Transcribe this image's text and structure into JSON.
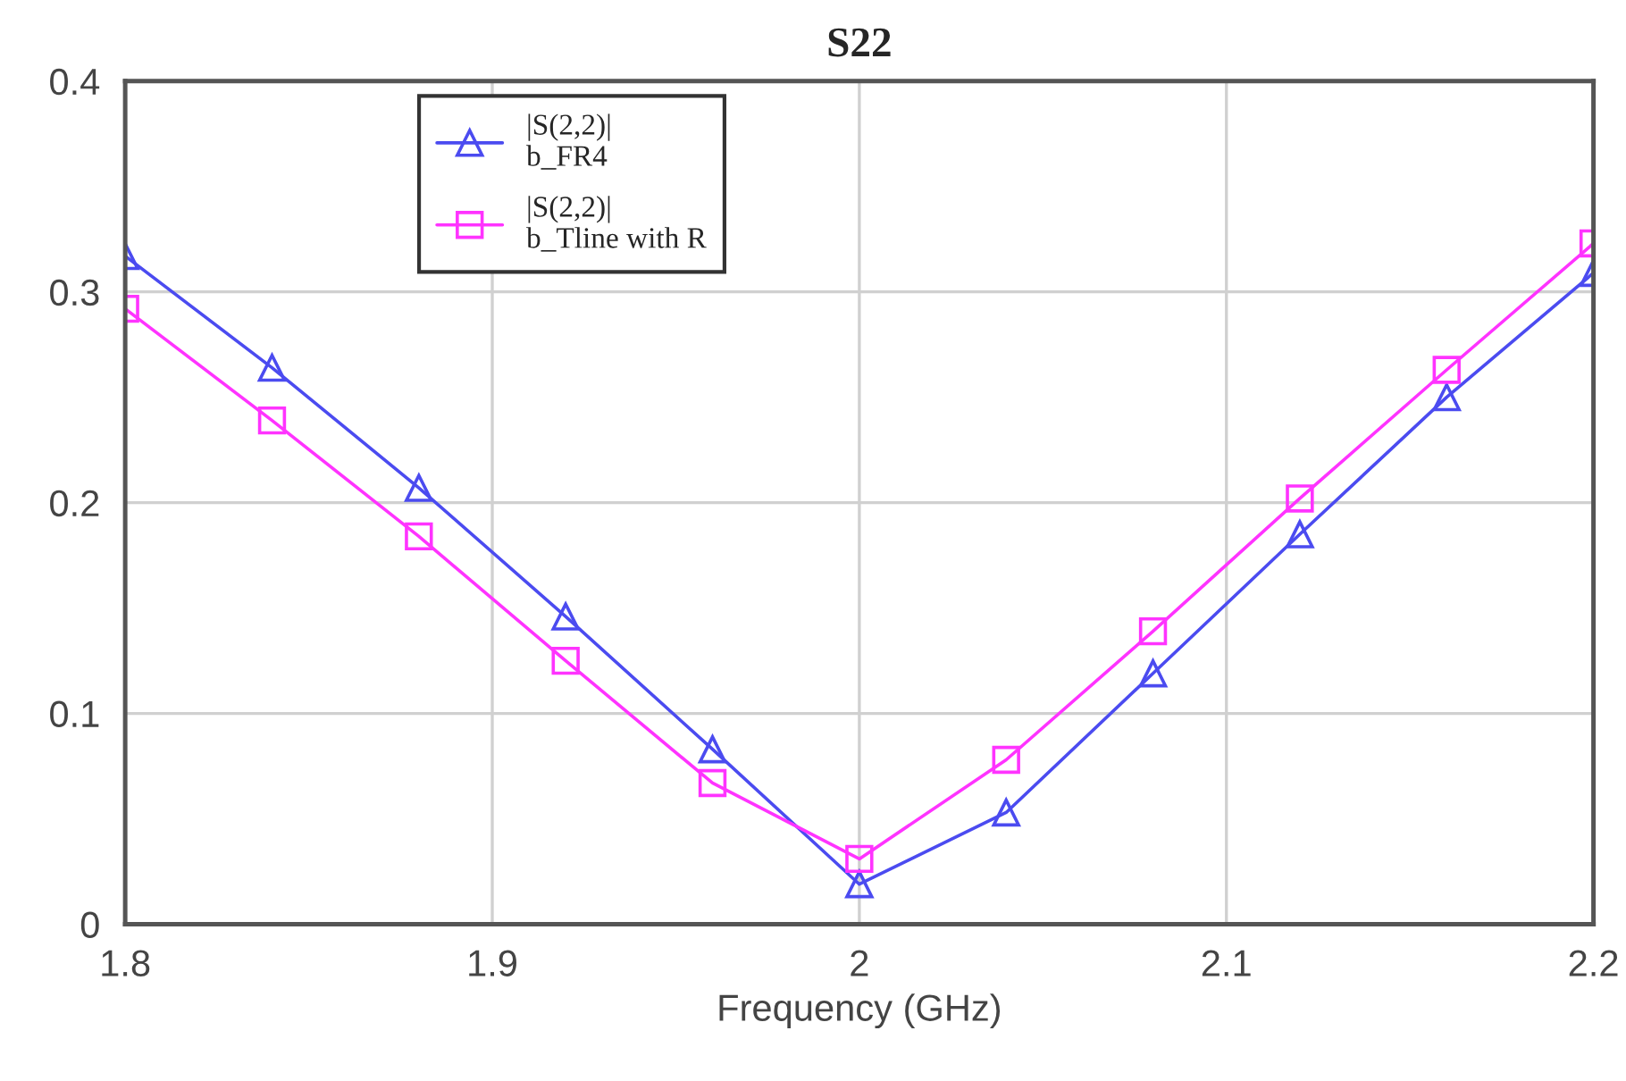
{
  "chart_data": {
    "type": "line",
    "title": "S22",
    "xlabel": "Frequency (GHz)",
    "x": [
      1.8,
      1.84,
      1.88,
      1.92,
      1.96,
      2.0,
      2.04,
      2.08,
      2.12,
      2.16,
      2.2
    ],
    "series": [
      {
        "name": "|S(2,2)|\nb_FR4",
        "color": "#4b4bf0",
        "marker": "triangle",
        "values": [
          0.317,
          0.264,
          0.207,
          0.146,
          0.083,
          0.019,
          0.053,
          0.119,
          0.185,
          0.25,
          0.309
        ]
      },
      {
        "name": "|S(2,2)|\nb_Tline with R",
        "color": "#ff33ff",
        "marker": "square",
        "values": [
          0.292,
          0.239,
          0.184,
          0.125,
          0.067,
          0.031,
          0.078,
          0.139,
          0.202,
          0.263,
          0.323
        ]
      }
    ],
    "xlim": [
      1.8,
      2.2
    ],
    "xticks": [
      1.8,
      1.9,
      2,
      2.1,
      2.2
    ],
    "ylim": [
      0,
      0.4
    ],
    "yticks": [
      0,
      0.1,
      0.2,
      0.3,
      0.4
    ],
    "grid": true,
    "legend": "top left",
    "line_style": "solid"
  }
}
